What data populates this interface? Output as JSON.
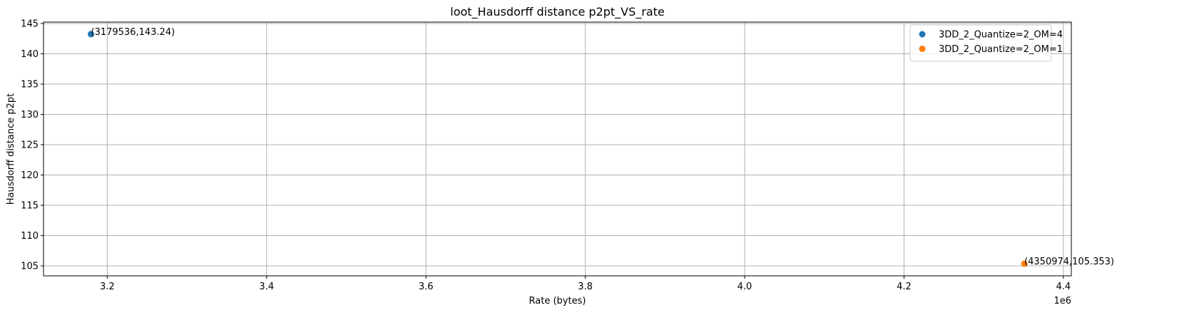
{
  "chart_data": {
    "type": "scatter",
    "title": "loot_Hausdorff distance p2pt_VS_rate",
    "xlabel": "Rate (bytes)",
    "ylabel": "Hausdorff distance p2pt",
    "x_offset_label": "1e6",
    "xlim": [
      3120000,
      4410000
    ],
    "ylim": [
      103.36,
      145.23
    ],
    "x_ticks": [
      3200000,
      3400000,
      3600000,
      3800000,
      4000000,
      4200000,
      4400000
    ],
    "x_tick_labels": [
      "3.2",
      "3.4",
      "3.6",
      "3.8",
      "4.0",
      "4.2",
      "4.4"
    ],
    "y_ticks": [
      105,
      110,
      115,
      120,
      125,
      130,
      135,
      140,
      145
    ],
    "y_tick_labels": [
      "105",
      "110",
      "115",
      "120",
      "125",
      "130",
      "135",
      "140",
      "145"
    ],
    "grid": true,
    "legend_position": "top-right",
    "series": [
      {
        "name": "3DD_2_Quantize=2_OM=4",
        "color": "#1f77b4",
        "points": [
          {
            "x": 3179536,
            "y": 143.24,
            "label": "(3179536,143.24)"
          }
        ]
      },
      {
        "name": "3DD_2_Quantize=2_OM=1",
        "color": "#ff7f0e",
        "points": [
          {
            "x": 4350974,
            "y": 105.353,
            "label": "(4350974,105.353)"
          }
        ]
      }
    ]
  }
}
